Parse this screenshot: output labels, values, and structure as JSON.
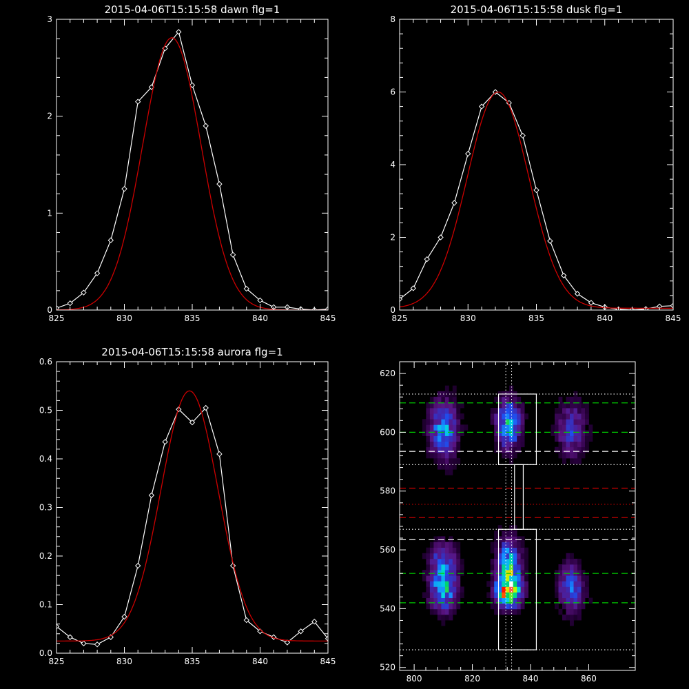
{
  "chart_data": [
    {
      "type": "line",
      "title": "2015-04-06T15:15:58 dawn flg=1",
      "xlabel": "",
      "ylabel": "",
      "xlim": [
        825,
        845
      ],
      "ylim": [
        0,
        3
      ],
      "x_ticks": [
        825,
        830,
        835,
        840,
        845
      ],
      "y_ticks": [
        0,
        1,
        2,
        3
      ],
      "grid": false,
      "series": [
        {
          "kind": "data",
          "marker": "diamond",
          "color": "#ffffff",
          "x": [
            825,
            826,
            827,
            828,
            829,
            830,
            831,
            832,
            833,
            834,
            835,
            836,
            837,
            838,
            839,
            840,
            841,
            842,
            843,
            844,
            845
          ],
          "y": [
            0.02,
            0.07,
            0.18,
            0.38,
            0.72,
            1.25,
            2.15,
            2.3,
            2.7,
            2.87,
            2.32,
            1.9,
            1.3,
            0.57,
            0.22,
            0.1,
            0.03,
            0.03,
            0.01,
            0.0,
            0.01
          ]
        },
        {
          "kind": "fit",
          "color": "#cc0000",
          "gaussian": {
            "amp": 2.81,
            "center": 833.5,
            "sigma": 2.15,
            "offset": 0.0
          }
        }
      ]
    },
    {
      "type": "line",
      "title": "2015-04-06T15:15:58 dusk flg=1",
      "xlabel": "",
      "ylabel": "",
      "xlim": [
        825,
        845
      ],
      "ylim": [
        0,
        8
      ],
      "x_ticks": [
        825,
        830,
        835,
        840,
        845
      ],
      "y_ticks": [
        0,
        2,
        4,
        6,
        8
      ],
      "grid": false,
      "series": [
        {
          "kind": "data",
          "marker": "diamond",
          "color": "#ffffff",
          "x": [
            825,
            826,
            827,
            828,
            829,
            830,
            831,
            832,
            833,
            834,
            835,
            836,
            837,
            838,
            839,
            840,
            841,
            842,
            843,
            844,
            845
          ],
          "y": [
            0.3,
            0.6,
            1.4,
            2.0,
            2.95,
            4.3,
            5.6,
            6.0,
            5.7,
            4.8,
            3.3,
            1.9,
            0.95,
            0.45,
            0.2,
            0.08,
            0.02,
            0.0,
            0.03,
            0.1,
            0.12
          ]
        },
        {
          "kind": "fit",
          "color": "#cc0000",
          "gaussian": {
            "amp": 5.95,
            "center": 832.2,
            "sigma": 2.25,
            "offset": 0.05
          }
        }
      ]
    },
    {
      "type": "line",
      "title": "2015-04-06T15:15:58 aurora flg=1",
      "xlabel": "",
      "ylabel": "",
      "xlim": [
        825,
        845
      ],
      "ylim": [
        0,
        0.6
      ],
      "x_ticks": [
        825,
        830,
        835,
        840,
        845
      ],
      "y_ticks": [
        0.0,
        0.1,
        0.2,
        0.3,
        0.4,
        0.5,
        0.6
      ],
      "grid": false,
      "series": [
        {
          "kind": "data",
          "marker": "diamond",
          "color": "#ffffff",
          "x": [
            825,
            826,
            827,
            828,
            829,
            830,
            831,
            832,
            833,
            834,
            835,
            836,
            837,
            838,
            839,
            840,
            841,
            842,
            843,
            844,
            845
          ],
          "y": [
            0.055,
            0.033,
            0.02,
            0.018,
            0.033,
            0.075,
            0.18,
            0.325,
            0.435,
            0.502,
            0.475,
            0.505,
            0.41,
            0.18,
            0.068,
            0.045,
            0.033,
            0.022,
            0.045,
            0.065,
            0.03
          ]
        },
        {
          "kind": "fit",
          "color": "#cc0000",
          "gaussian": {
            "amp": 0.515,
            "center": 834.8,
            "sigma": 2.1,
            "offset": 0.025
          }
        }
      ]
    },
    {
      "type": "heatmap",
      "title": "",
      "xlabel": "",
      "ylabel": "",
      "xlim": [
        795,
        876
      ],
      "ylim": [
        519,
        624
      ],
      "x_ticks": [
        800,
        820,
        840,
        860
      ],
      "y_ticks": [
        520,
        540,
        560,
        580,
        600,
        620
      ],
      "grid": false,
      "pixel_size": [
        1.3,
        1.9
      ],
      "colormap": [
        "#000000",
        "#2a0040",
        "#5a1480",
        "#3c2ab4",
        "#1e50f0",
        "#1496ff",
        "#00dcdc",
        "#00d264",
        "#b4ff00",
        "#ffc800",
        "#ff0000",
        "#ffffff"
      ],
      "blobs": [
        {
          "x": 810,
          "y": 601,
          "sx": 3.2,
          "sy": 6.5,
          "amp": 0.45
        },
        {
          "x": 810,
          "y": 547,
          "sx": 3.0,
          "sy": 5.0,
          "amp": 0.55
        },
        {
          "x": 810,
          "y": 557,
          "sx": 3.0,
          "sy": 4.0,
          "amp": 0.3
        },
        {
          "x": 832.5,
          "y": 603,
          "sx": 2.8,
          "sy": 5.5,
          "amp": 0.55
        },
        {
          "x": 832.5,
          "y": 547,
          "sx": 2.8,
          "sy": 4.0,
          "amp": 1.0
        },
        {
          "x": 832.5,
          "y": 557,
          "sx": 2.6,
          "sy": 5.0,
          "amp": 0.45
        },
        {
          "x": 854,
          "y": 601,
          "sx": 3.2,
          "sy": 6.0,
          "amp": 0.3
        },
        {
          "x": 854,
          "y": 547,
          "sx": 3.0,
          "sy": 5.5,
          "amp": 0.35
        }
      ],
      "regions": [
        {
          "x0": 829,
          "x1": 842,
          "y0": 589,
          "y1": 613,
          "color": "#ffffff"
        },
        {
          "x0": 829,
          "x1": 842,
          "y0": 526,
          "y1": 567,
          "color": "#ffffff"
        },
        {
          "x0": 834.5,
          "x1": 837.5,
          "y0": 567,
          "y1": 589,
          "color": "#ffffff"
        }
      ],
      "hlines": [
        {
          "y": 613,
          "style": "dotted",
          "color": "#ffffff"
        },
        {
          "y": 610,
          "style": "dashed",
          "color": "#00cc00"
        },
        {
          "y": 600,
          "style": "dashed",
          "color": "#00cc00"
        },
        {
          "y": 593.5,
          "style": "dashed",
          "color": "#ffffff"
        },
        {
          "y": 589,
          "style": "dotted",
          "color": "#ffffff"
        },
        {
          "y": 581,
          "style": "dashed",
          "color": "#cc0000"
        },
        {
          "y": 575.5,
          "style": "dotted",
          "color": "#cc0000"
        },
        {
          "y": 571,
          "style": "dashed",
          "color": "#cc0000"
        },
        {
          "y": 567,
          "style": "dotted",
          "color": "#ffffff"
        },
        {
          "y": 563.5,
          "style": "dashed",
          "color": "#ffffff"
        },
        {
          "y": 552,
          "style": "dashed",
          "color": "#00cc00"
        },
        {
          "y": 542,
          "style": "dashed",
          "color": "#00cc00"
        },
        {
          "y": 526,
          "style": "dotted",
          "color": "#ffffff"
        }
      ],
      "vlines": [
        {
          "x": 831.5,
          "style": "dotted",
          "color": "#ffffff"
        },
        {
          "x": 833.5,
          "style": "dotted",
          "color": "#ffffff"
        }
      ]
    }
  ]
}
